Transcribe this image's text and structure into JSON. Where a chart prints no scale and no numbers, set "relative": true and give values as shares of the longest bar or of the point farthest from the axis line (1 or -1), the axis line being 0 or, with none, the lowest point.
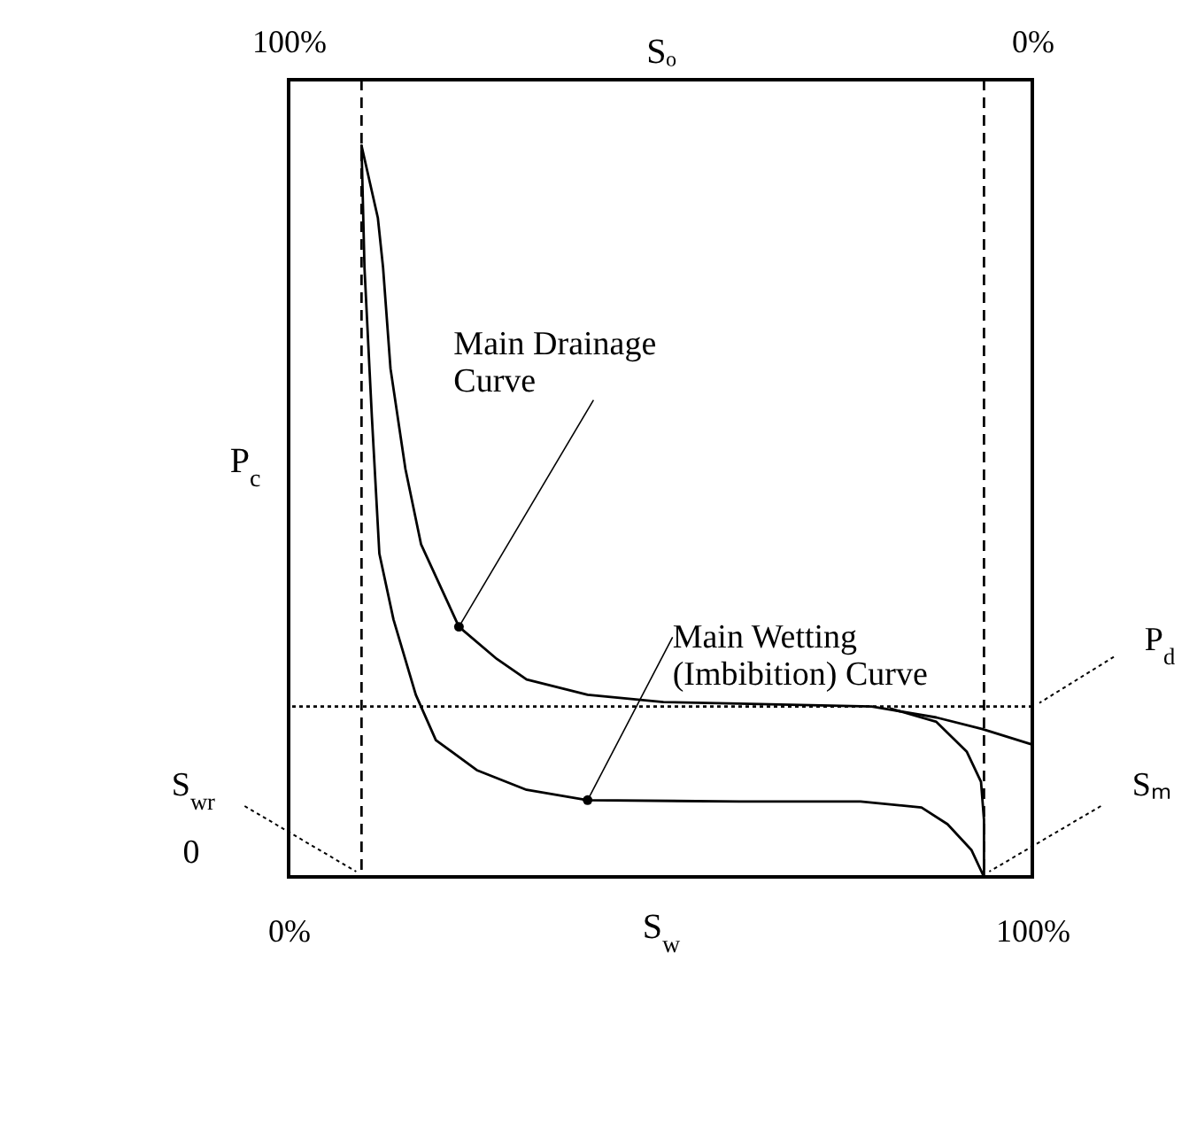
{
  "chart_data": {
    "type": "line",
    "relative": true,
    "xlabel": "S$_{w}$",
    "ylabel": "P$_{c}$",
    "x2label": "Sₒ",
    "xlim": [
      0,
      100
    ],
    "xticks": [
      {
        "value": 0,
        "label": "0%"
      },
      {
        "value": 100,
        "label": "100%"
      }
    ],
    "x2lim": [
      100,
      0
    ],
    "x2ticks": [
      {
        "value": 100,
        "label": "100%"
      },
      {
        "value": 0,
        "label": "0%"
      }
    ],
    "line_style": "solid",
    "series": [
      {
        "color": "#000000",
        "x": [
          9.8,
          12.0,
          12.7,
          13.7,
          15.7,
          17.8,
          22.9,
          28.0,
          32.0,
          40.2,
          50.4,
          60.6,
          78.4,
          87.1,
          93.3,
          100
        ],
        "values": [
          1,
          0.901,
          0.833,
          0.695,
          0.558,
          0.455,
          0.342,
          0.298,
          0.27,
          0.249,
          0.239,
          0.237,
          0.233,
          0.218,
          0.202,
          0.181
        ]
      },
      {
        "color": "#000000",
        "x": [
          9.8,
          10.2,
          11.2,
          12.2,
          14.1,
          17.1,
          19.8,
          25.3,
          32.0,
          40.2,
          60.6,
          76.9,
          85.1,
          88.6,
          91.8,
          93.5
        ],
        "values": [
          1,
          0.833,
          0.628,
          0.442,
          0.352,
          0.249,
          0.187,
          0.146,
          0.119,
          0.105,
          0.103,
          0.103,
          0.095,
          0.072,
          0.037,
          0
        ]
      },
      {
        "color": "#000000",
        "x": [
          93.5,
          93.5,
          93.1,
          91.2,
          87.1,
          81.0
        ],
        "values": [
          0,
          0.078,
          0.13,
          0.171,
          0.212,
          0.23
        ]
      }
    ],
    "ref_lines": [
      {
        "axis": "x",
        "value": 9.8,
        "label": "S$_{wr}$",
        "line_style": "dashed",
        "color": "#000000"
      },
      {
        "axis": "x",
        "value": 93.5,
        "label": "Sₘ",
        "line_style": "dashed",
        "color": "#000000"
      },
      {
        "axis": "y",
        "value": 0.233,
        "label": "P$_{d}$",
        "line_style": "dotted",
        "color": "#000000"
      }
    ],
    "annotations": [
      {
        "text": "Main Drainage\nCurve",
        "x": 22.9,
        "y": 0.342
      },
      {
        "text": "Main Wetting\n(Imbibition) Curve",
        "x": 40.2,
        "y": 0.105
      },
      "0"
    ]
  }
}
